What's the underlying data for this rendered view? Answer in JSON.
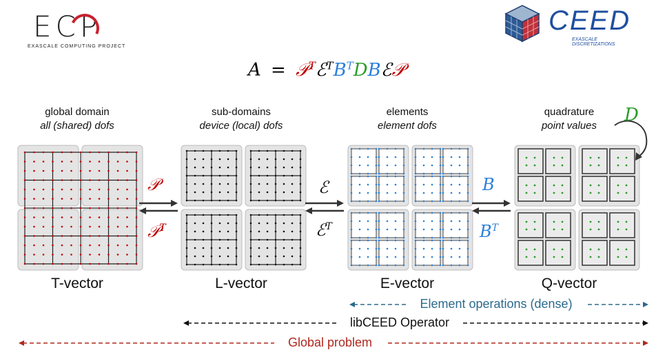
{
  "logos": {
    "ecp": {
      "text": "ECP",
      "subtitle": "EXASCALE COMPUTING PROJECT"
    },
    "ceed": {
      "text": "CEED",
      "subtitle": "EXASCALE DISCRETIZATIONS"
    }
  },
  "equation": {
    "lhs": "A",
    "eq": "=",
    "terms": [
      {
        "sym": "𝒫",
        "sup": "T",
        "color": "#c00000"
      },
      {
        "sym": "ℰ",
        "sup": "T",
        "color": "#000000"
      },
      {
        "sym": "B",
        "sup": "T",
        "color": "#2b7fd8"
      },
      {
        "sym": "D",
        "sup": "",
        "color": "#2a9d2a"
      },
      {
        "sym": "B",
        "sup": "",
        "color": "#2b7fd8"
      },
      {
        "sym": "ℰ",
        "sup": "",
        "color": "#000000"
      },
      {
        "sym": "𝒫",
        "sup": "",
        "color": "#c00000"
      }
    ]
  },
  "stages": [
    {
      "heading": "global domain",
      "subheading": "all (shared) dofs",
      "label": "T-vector"
    },
    {
      "heading": "sub-domains",
      "subheading": "device (local) dofs",
      "label": "L-vector"
    },
    {
      "heading": "elements",
      "subheading": "element dofs",
      "label": "E-vector"
    },
    {
      "heading": "quadrature",
      "subheading": "point values",
      "label": "Q-vector"
    }
  ],
  "operators": {
    "p_top": "𝒫",
    "p_bottom": "𝒫",
    "p_bottom_sup": "T",
    "e_top": "ℰ",
    "e_bottom": "ℰ",
    "e_bottom_sup": "T",
    "b_top": "B",
    "b_bottom": "B",
    "b_bottom_sup": "T",
    "d_label": "D"
  },
  "spans": {
    "element_ops": "Element operations (dense)",
    "libceed": "libCEED Operator",
    "global": "Global problem"
  },
  "colors": {
    "red": "#c00000",
    "blue": "#2b7fd8",
    "green": "#2a9d2a",
    "teal": "#2b6a8c",
    "dark_red": "#b0281e",
    "panel": "#e4e4e4"
  }
}
